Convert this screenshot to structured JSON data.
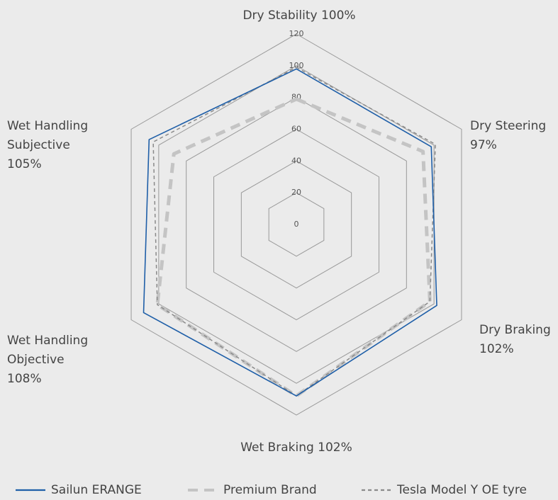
{
  "chart_data": {
    "type": "radar",
    "categories": [
      [
        "Dry Stability 100%"
      ],
      [
        "Dry Steering",
        "97%"
      ],
      [
        "Dry Braking",
        "102%"
      ],
      [
        "Wet Braking 102%"
      ],
      [
        "Wet Handling",
        "Objective",
        "108%"
      ],
      [
        "Wet Handling",
        "Subjective",
        "105%"
      ]
    ],
    "rlim": [
      0,
      120
    ],
    "rticks": [
      0,
      20,
      40,
      60,
      80,
      100,
      120
    ],
    "grid": true,
    "legend": "bottom",
    "series": [
      {
        "name": "Sailun ERANGE",
        "color": "#1f5fa8",
        "line_style": "solid",
        "values": [
          98,
          98,
          102,
          108,
          111,
          107
        ]
      },
      {
        "name": "Premium Brand",
        "color": "#c4c4c4",
        "line_style": "thick-dashed",
        "values": [
          79,
          92,
          97,
          108,
          101,
          89
        ]
      },
      {
        "name": "Tesla Model Y OE tyre",
        "color": "#8a8a8a",
        "line_style": "dashed",
        "values": [
          99,
          101,
          97,
          108,
          101,
          104
        ]
      }
    ]
  }
}
